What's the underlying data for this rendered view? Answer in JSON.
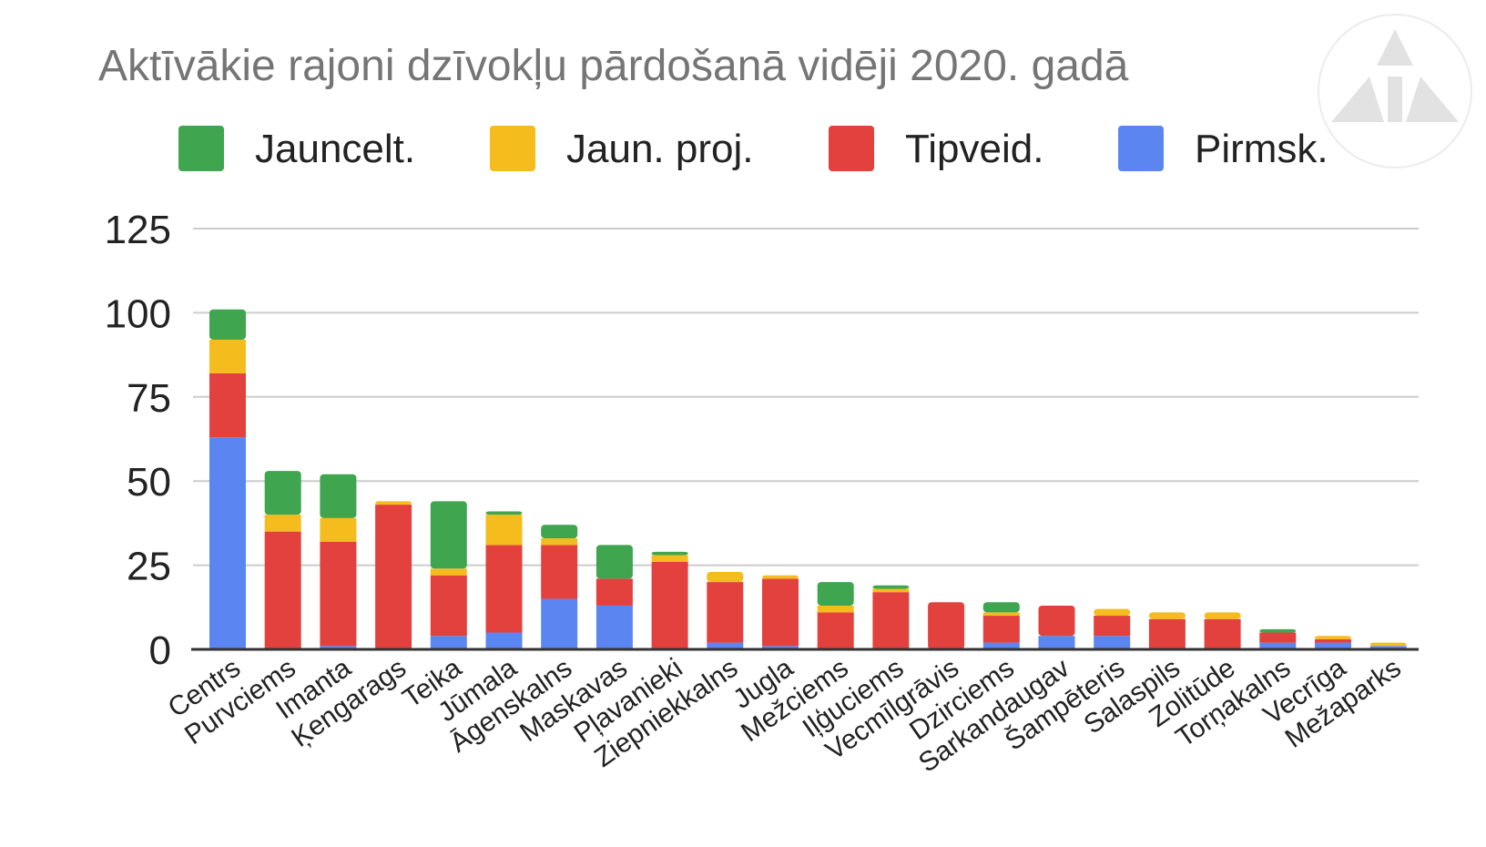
{
  "chart_data": {
    "type": "bar",
    "stacked": true,
    "title": "Aktīvākie rajoni dzīvokļu pārdošanā vidēji 2020. gadā",
    "xlabel": "",
    "ylabel": "",
    "ylim": [
      0,
      125
    ],
    "yticks": [
      0,
      25,
      50,
      75,
      100,
      125
    ],
    "grid": true,
    "legend_position": "top",
    "legend_order": [
      "Jauncelt.",
      "Jaun. proj.",
      "Tipveid.",
      "Pirmsk."
    ],
    "categories": [
      "Centrs",
      "Purvciems",
      "Imanta",
      "Ķengarags",
      "Teika",
      "Jūmala",
      "Āgenskalns",
      "Maskavas",
      "Pļavanieki",
      "Ziepniekkalns",
      "Jugla",
      "Mežciems",
      "Iļģuciems",
      "Vecmīlgrāvis",
      "Dzirciems",
      "Sarkandaugav",
      "Šampēteris",
      "Salaspils",
      "Zolitūde",
      "Torņakalns",
      "Vecrīga",
      "Mežaparks"
    ],
    "series": [
      {
        "name": "Pirmsk.",
        "color": "#5b86f1",
        "values": [
          63,
          0,
          1,
          0,
          4,
          5,
          15,
          13,
          0,
          2,
          1,
          0,
          0,
          0,
          2,
          4,
          4,
          0,
          0,
          2,
          2,
          1
        ]
      },
      {
        "name": "Tipveid.",
        "color": "#e3413d",
        "values": [
          19,
          35,
          31,
          43,
          18,
          26,
          16,
          8,
          26,
          18,
          20,
          11,
          17,
          14,
          8,
          9,
          6,
          9,
          9,
          3,
          1,
          0
        ]
      },
      {
        "name": "Jaun. proj.",
        "color": "#f4bc1d",
        "values": [
          10,
          5,
          7,
          1,
          2,
          9,
          2,
          0,
          2,
          3,
          1,
          2,
          1,
          0,
          1,
          0,
          2,
          2,
          2,
          0,
          1,
          1
        ]
      },
      {
        "name": "Jauncelt.",
        "color": "#3fa54f",
        "values": [
          9,
          13,
          13,
          0,
          20,
          1,
          4,
          10,
          1,
          0,
          0,
          7,
          1,
          0,
          3,
          0,
          0,
          0,
          0,
          1,
          0,
          0
        ]
      }
    ]
  },
  "logo": {
    "name": "triangle-logo-icon"
  }
}
